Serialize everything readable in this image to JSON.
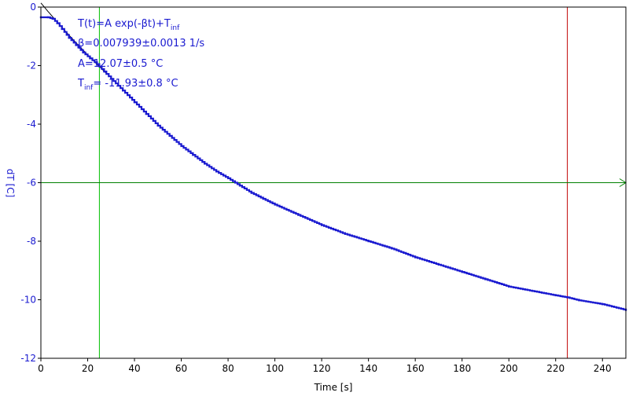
{
  "chart_data": {
    "type": "scatter",
    "xlabel": "Time [s]",
    "ylabel": "dT [C]",
    "xlim": [
      0,
      250
    ],
    "ylim": [
      -12,
      0
    ],
    "x_ticks": [
      0,
      20,
      40,
      60,
      80,
      100,
      120,
      140,
      160,
      180,
      200,
      220,
      240
    ],
    "y_ticks": [
      0,
      -2,
      -4,
      -6,
      -8,
      -10,
      -12
    ],
    "grid": false,
    "annotations": {
      "formula_main": "T(t)=A exp(-βt)+T",
      "formula_sub": "inf",
      "beta": "β=0.007939±0.0013 1/s",
      "amplitude": "A=12.07±0.5 °C",
      "tinf_main": "T",
      "tinf_sub": "inf",
      "tinf_value": "= -11.93±0.8 °C"
    },
    "fit": {
      "A": 12.07,
      "beta": 0.007939,
      "T_inf": -11.93
    },
    "cursors": {
      "vertical_green_x": 25,
      "vertical_red_x": 225,
      "horizontal_green_y": -6
    },
    "data_series": {
      "points": [
        [
          0,
          -0.35
        ],
        [
          3,
          -0.35
        ],
        [
          5,
          -0.4
        ],
        [
          7,
          -0.55
        ],
        [
          9,
          -0.75
        ],
        [
          12,
          -1.05
        ],
        [
          15,
          -1.3
        ],
        [
          18,
          -1.55
        ],
        [
          21,
          -1.75
        ],
        [
          24,
          -1.95
        ],
        [
          27,
          -2.2
        ],
        [
          30,
          -2.45
        ],
        [
          35,
          -2.85
        ],
        [
          40,
          -3.25
        ],
        [
          45,
          -3.65
        ],
        [
          50,
          -4.05
        ],
        [
          55,
          -4.4
        ],
        [
          60,
          -4.75
        ],
        [
          65,
          -5.05
        ],
        [
          70,
          -5.35
        ],
        [
          75,
          -5.62
        ],
        [
          80,
          -5.85
        ],
        [
          85,
          -6.1
        ],
        [
          90,
          -6.35
        ],
        [
          95,
          -6.55
        ],
        [
          100,
          -6.75
        ],
        [
          110,
          -7.1
        ],
        [
          120,
          -7.45
        ],
        [
          130,
          -7.75
        ],
        [
          140,
          -8.0
        ],
        [
          150,
          -8.25
        ],
        [
          160,
          -8.55
        ],
        [
          170,
          -8.8
        ],
        [
          180,
          -9.05
        ],
        [
          190,
          -9.3
        ],
        [
          200,
          -9.55
        ],
        [
          210,
          -9.7
        ],
        [
          220,
          -9.85
        ],
        [
          225,
          -9.92
        ],
        [
          230,
          -10.02
        ],
        [
          240,
          -10.15
        ],
        [
          250,
          -10.35
        ]
      ]
    },
    "colors": {
      "data": "#1a1ad0",
      "fit": "#000000",
      "axis": "#000000",
      "tick_x": "#000000",
      "tick_y": "#1a1ad0",
      "cursor_green": "#00c000",
      "cursor_red": "#c00000",
      "hline": "#008000"
    }
  }
}
